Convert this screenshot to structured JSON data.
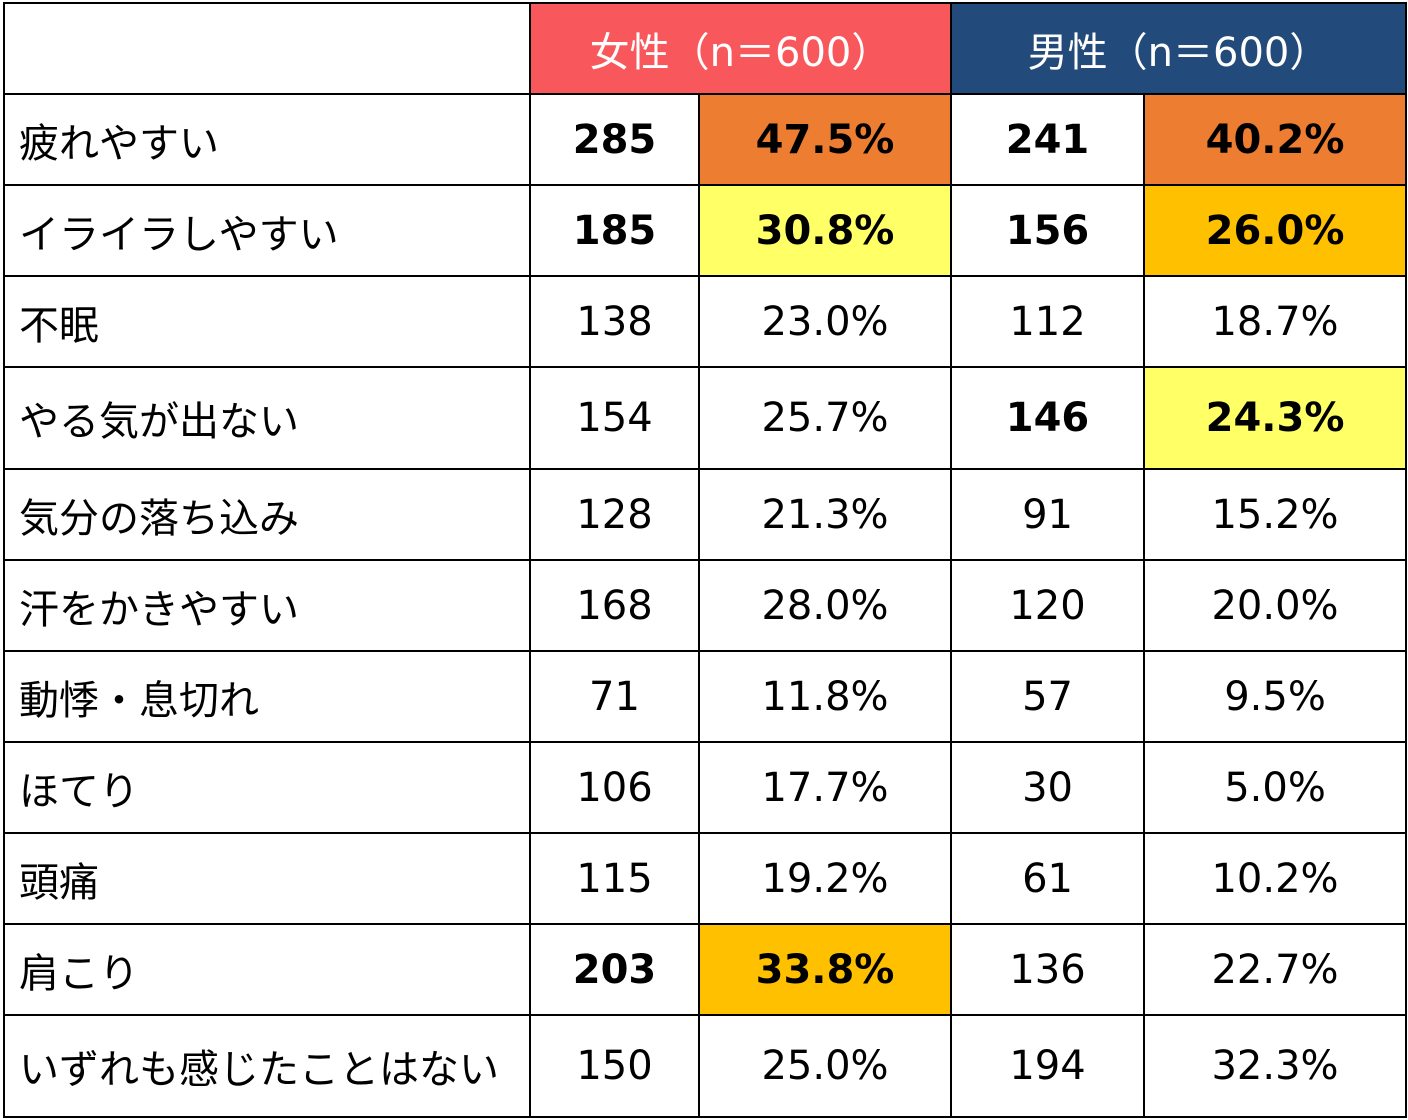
{
  "colors": {
    "female_header": "#f8585b",
    "male_header": "#224a7a",
    "rank1": "#ed7d31",
    "rank2": "#ffc000",
    "rank3": "#ffff66"
  },
  "chart_data": {
    "type": "table",
    "columns": [
      "",
      "女性（n＝600）",
      "男性（n＝600）"
    ],
    "groups": [
      {
        "name": "女性（n＝600）",
        "n": 600
      },
      {
        "name": "男性（n＝600）",
        "n": 600
      }
    ],
    "rows": [
      {
        "label": "疲れやすい",
        "female_count": "285",
        "female_pct": "47.5%",
        "male_count": "241",
        "male_pct": "40.2%",
        "female_rank": 1,
        "male_rank": 1
      },
      {
        "label": "イライラしやすい",
        "female_count": "185",
        "female_pct": "30.8%",
        "male_count": "156",
        "male_pct": "26.0%",
        "female_rank": 3,
        "male_rank": 2
      },
      {
        "label": "不眠",
        "female_count": "138",
        "female_pct": "23.0%",
        "male_count": "112",
        "male_pct": "18.7%",
        "female_rank": 0,
        "male_rank": 0
      },
      {
        "label": "やる気が出ない",
        "female_count": "154",
        "female_pct": "25.7%",
        "male_count": "146",
        "male_pct": "24.3%",
        "female_rank": 0,
        "male_rank": 3
      },
      {
        "label": "気分の落ち込み",
        "female_count": "128",
        "female_pct": "21.3%",
        "male_count": "91",
        "male_pct": "15.2%",
        "female_rank": 0,
        "male_rank": 0
      },
      {
        "label": "汗をかきやすい",
        "female_count": "168",
        "female_pct": "28.0%",
        "male_count": "120",
        "male_pct": "20.0%",
        "female_rank": 0,
        "male_rank": 0
      },
      {
        "label": "動悸・息切れ",
        "female_count": "71",
        "female_pct": "11.8%",
        "male_count": "57",
        "male_pct": "9.5%",
        "female_rank": 0,
        "male_rank": 0
      },
      {
        "label": "ほてり",
        "female_count": "106",
        "female_pct": "17.7%",
        "male_count": "30",
        "male_pct": "5.0%",
        "female_rank": 0,
        "male_rank": 0
      },
      {
        "label": "頭痛",
        "female_count": "115",
        "female_pct": "19.2%",
        "male_count": "61",
        "male_pct": "10.2%",
        "female_rank": 0,
        "male_rank": 0
      },
      {
        "label": "肩こり",
        "female_count": "203",
        "female_pct": "33.8%",
        "male_count": "136",
        "male_pct": "22.7%",
        "female_rank": 2,
        "male_rank": 0
      },
      {
        "label": "いずれも感じたことはない",
        "female_count": "150",
        "female_pct": "25.0%",
        "male_count": "194",
        "male_pct": "32.3%",
        "female_rank": 0,
        "male_rank": 0
      }
    ]
  }
}
